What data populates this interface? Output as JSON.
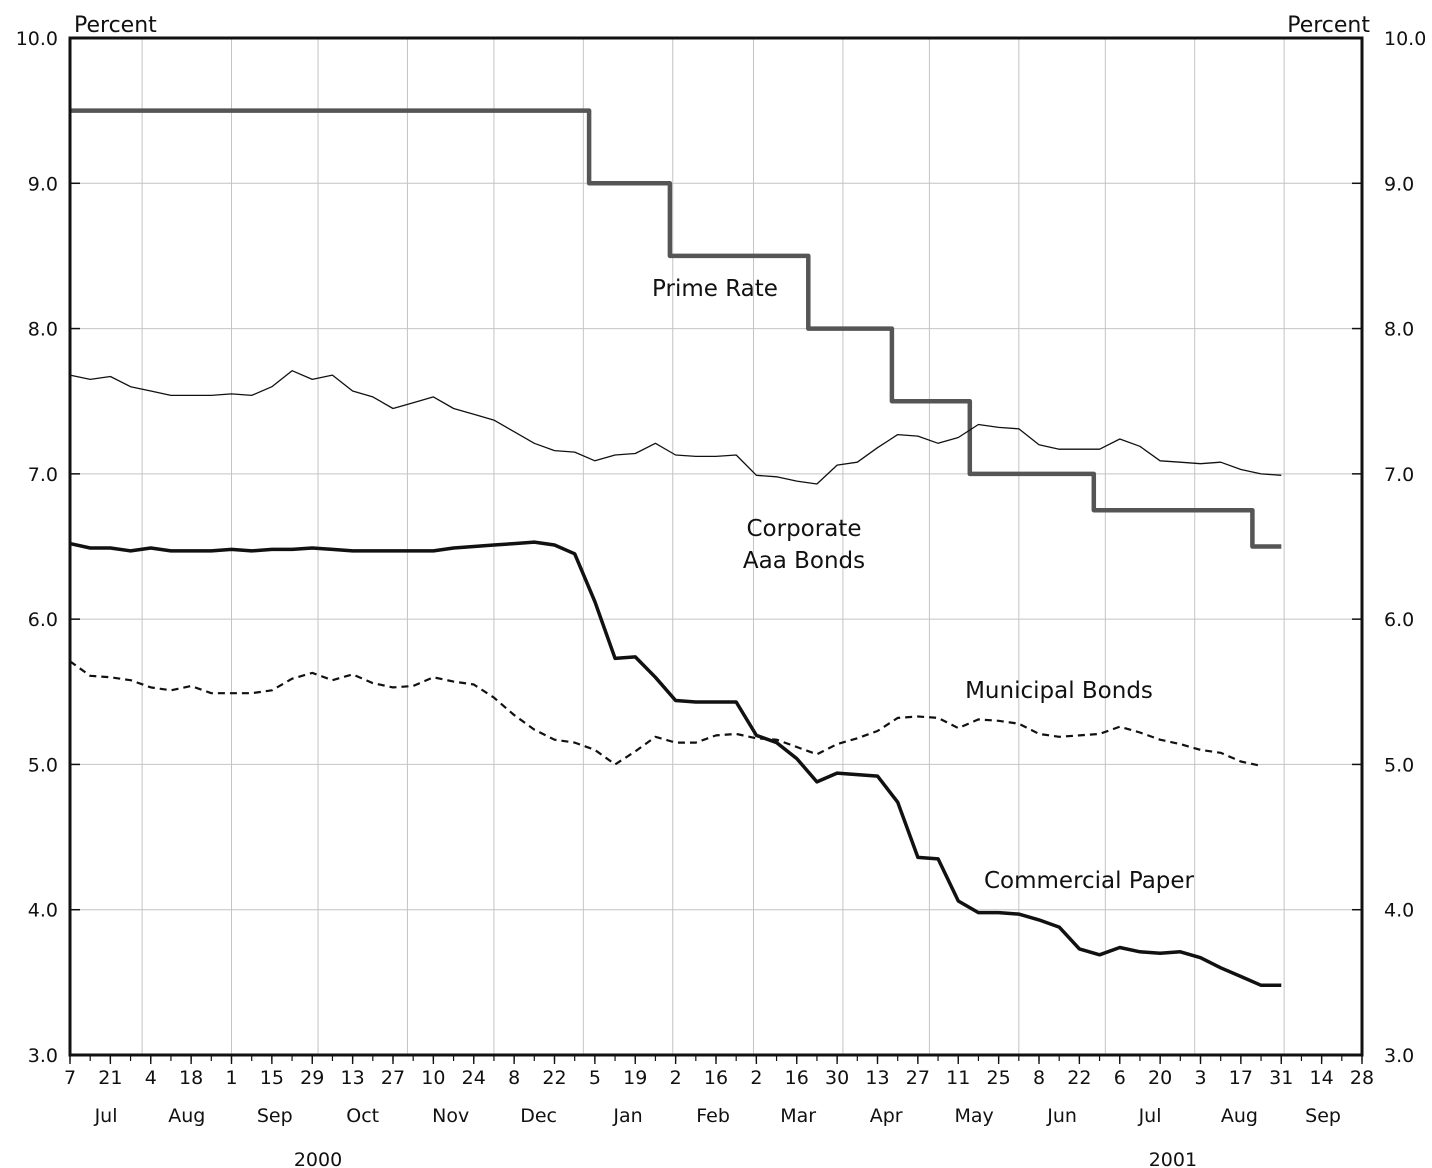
{
  "chart_data": {
    "type": "line",
    "title": "",
    "y_unit_left": "Percent",
    "y_unit_right": "Percent",
    "ylim": [
      3.0,
      10.0
    ],
    "y_ticks": [
      "3.0",
      "4.0",
      "5.0",
      "6.0",
      "7.0",
      "8.0",
      "9.0",
      "10.0"
    ],
    "grid": true,
    "x_range": [
      "2000-07-07",
      "2001-09-28"
    ],
    "x_tick_labels": [
      "7",
      "21",
      "4",
      "18",
      "1",
      "15",
      "29",
      "13",
      "27",
      "10",
      "24",
      "8",
      "22",
      "5",
      "19",
      "2",
      "16",
      "2",
      "16",
      "30",
      "13",
      "27",
      "11",
      "25",
      "8",
      "22",
      "6",
      "20",
      "3",
      "17",
      "31",
      "14",
      "28"
    ],
    "month_labels": [
      "Jul",
      "Aug",
      "Sep",
      "Oct",
      "Nov",
      "Dec",
      "Jan",
      "Feb",
      "Mar",
      "Apr",
      "May",
      "Jun",
      "Jul",
      "Aug",
      "Sep"
    ],
    "year_labels": [
      "2000",
      "2001"
    ],
    "series": [
      {
        "name": "Prime Rate",
        "style": "step",
        "color": "#555555",
        "x": [
          "2000-07-07",
          "2001-01-03",
          "2001-01-31",
          "2001-03-20",
          "2001-04-18",
          "2001-05-15",
          "2001-06-27",
          "2001-08-21",
          "2001-08-31"
        ],
        "values": [
          9.5,
          9.0,
          8.5,
          8.0,
          7.5,
          7.0,
          6.75,
          6.5,
          6.5
        ]
      },
      {
        "name": "Corporate Aaa Bonds",
        "style": "thin",
        "color": "#111111",
        "x": [
          "2000-07-07",
          "2000-07-14",
          "2000-07-21",
          "2000-07-28",
          "2000-08-04",
          "2000-08-11",
          "2000-08-18",
          "2000-08-25",
          "2000-09-01",
          "2000-09-08",
          "2000-09-15",
          "2000-09-22",
          "2000-09-29",
          "2000-10-06",
          "2000-10-13",
          "2000-10-20",
          "2000-10-27",
          "2000-11-03",
          "2000-11-10",
          "2000-11-17",
          "2000-11-24",
          "2000-12-01",
          "2000-12-08",
          "2000-12-15",
          "2000-12-22",
          "2000-12-29",
          "2001-01-05",
          "2001-01-12",
          "2001-01-19",
          "2001-01-26",
          "2001-02-02",
          "2001-02-09",
          "2001-02-16",
          "2001-02-23",
          "2001-03-02",
          "2001-03-09",
          "2001-03-16",
          "2001-03-23",
          "2001-03-30",
          "2001-04-06",
          "2001-04-13",
          "2001-04-20",
          "2001-04-27",
          "2001-05-04",
          "2001-05-11",
          "2001-05-18",
          "2001-05-25",
          "2001-06-01",
          "2001-06-08",
          "2001-06-15",
          "2001-06-22",
          "2001-06-29",
          "2001-07-06",
          "2001-07-13",
          "2001-07-20",
          "2001-07-27",
          "2001-08-03",
          "2001-08-10",
          "2001-08-17",
          "2001-08-24",
          "2001-08-31"
        ],
        "values": [
          7.68,
          7.65,
          7.67,
          7.6,
          7.57,
          7.54,
          7.54,
          7.54,
          7.55,
          7.54,
          7.6,
          7.71,
          7.65,
          7.68,
          7.57,
          7.53,
          7.45,
          7.49,
          7.53,
          7.45,
          7.41,
          7.37,
          7.29,
          7.21,
          7.16,
          7.15,
          7.09,
          7.13,
          7.14,
          7.21,
          7.13,
          7.12,
          7.12,
          7.13,
          6.99,
          6.98,
          6.95,
          6.93,
          7.06,
          7.08,
          7.18,
          7.27,
          7.26,
          7.21,
          7.25,
          7.34,
          7.32,
          7.31,
          7.2,
          7.17,
          7.17,
          7.17,
          7.24,
          7.19,
          7.09,
          7.08,
          7.07,
          7.08,
          7.03,
          7.0,
          6.99
        ]
      },
      {
        "name": "Municipal Bonds",
        "style": "dashed",
        "color": "#111111",
        "x": [
          "2000-07-07",
          "2000-07-14",
          "2000-07-21",
          "2000-07-28",
          "2000-08-04",
          "2000-08-11",
          "2000-08-18",
          "2000-08-25",
          "2000-09-01",
          "2000-09-08",
          "2000-09-15",
          "2000-09-22",
          "2000-09-29",
          "2000-10-06",
          "2000-10-13",
          "2000-10-20",
          "2000-10-27",
          "2000-11-03",
          "2000-11-10",
          "2000-11-17",
          "2000-11-24",
          "2000-12-01",
          "2000-12-08",
          "2000-12-15",
          "2000-12-22",
          "2000-12-29",
          "2001-01-05",
          "2001-01-12",
          "2001-01-19",
          "2001-01-26",
          "2001-02-02",
          "2001-02-09",
          "2001-02-16",
          "2001-02-23",
          "2001-03-02",
          "2001-03-09",
          "2001-03-16",
          "2001-03-23",
          "2001-03-30",
          "2001-04-06",
          "2001-04-13",
          "2001-04-20",
          "2001-04-27",
          "2001-05-04",
          "2001-05-11",
          "2001-05-18",
          "2001-05-25",
          "2001-06-01",
          "2001-06-08",
          "2001-06-15",
          "2001-06-22",
          "2001-06-29",
          "2001-07-06",
          "2001-07-13",
          "2001-07-20",
          "2001-07-27",
          "2001-08-03",
          "2001-08-10",
          "2001-08-17",
          "2001-08-24"
        ],
        "values": [
          5.71,
          5.61,
          5.6,
          5.58,
          5.53,
          5.51,
          5.54,
          5.49,
          5.49,
          5.49,
          5.51,
          5.59,
          5.63,
          5.58,
          5.62,
          5.56,
          5.53,
          5.54,
          5.6,
          5.57,
          5.55,
          5.46,
          5.34,
          5.24,
          5.17,
          5.15,
          5.1,
          5.0,
          5.09,
          5.19,
          5.15,
          5.15,
          5.2,
          5.21,
          5.18,
          5.17,
          5.12,
          5.07,
          5.14,
          5.18,
          5.23,
          5.32,
          5.33,
          5.32,
          5.25,
          5.31,
          5.3,
          5.28,
          5.21,
          5.19,
          5.2,
          5.21,
          5.26,
          5.22,
          5.17,
          5.14,
          5.1,
          5.08,
          5.02,
          4.99
        ]
      },
      {
        "name": "Commercial Paper",
        "style": "thick",
        "color": "#111111",
        "x": [
          "2000-07-07",
          "2000-07-14",
          "2000-07-21",
          "2000-07-28",
          "2000-08-04",
          "2000-08-11",
          "2000-08-18",
          "2000-08-25",
          "2000-09-01",
          "2000-09-08",
          "2000-09-15",
          "2000-09-22",
          "2000-09-29",
          "2000-10-06",
          "2000-10-13",
          "2000-10-20",
          "2000-10-27",
          "2000-11-03",
          "2000-11-10",
          "2000-11-17",
          "2000-11-24",
          "2000-12-01",
          "2000-12-08",
          "2000-12-15",
          "2000-12-22",
          "2000-12-29",
          "2001-01-05",
          "2001-01-12",
          "2001-01-19",
          "2001-01-26",
          "2001-02-02",
          "2001-02-09",
          "2001-02-16",
          "2001-02-23",
          "2001-03-02",
          "2001-03-09",
          "2001-03-16",
          "2001-03-23",
          "2001-03-30",
          "2001-04-06",
          "2001-04-13",
          "2001-04-20",
          "2001-04-27",
          "2001-05-04",
          "2001-05-11",
          "2001-05-18",
          "2001-05-25",
          "2001-06-01",
          "2001-06-08",
          "2001-06-15",
          "2001-06-22",
          "2001-06-29",
          "2001-07-06",
          "2001-07-13",
          "2001-07-20",
          "2001-07-27",
          "2001-08-03",
          "2001-08-10",
          "2001-08-17",
          "2001-08-24",
          "2001-08-31"
        ],
        "values": [
          6.52,
          6.49,
          6.49,
          6.47,
          6.49,
          6.47,
          6.47,
          6.47,
          6.48,
          6.47,
          6.48,
          6.48,
          6.49,
          6.48,
          6.47,
          6.47,
          6.47,
          6.47,
          6.47,
          6.49,
          6.5,
          6.51,
          6.52,
          6.53,
          6.51,
          6.45,
          6.12,
          5.73,
          5.74,
          5.6,
          5.44,
          5.43,
          5.43,
          5.43,
          5.2,
          5.15,
          5.04,
          4.88,
          4.94,
          4.93,
          4.92,
          4.74,
          4.36,
          4.35,
          4.06,
          3.98,
          3.98,
          3.97,
          3.93,
          3.88,
          3.73,
          3.69,
          3.74,
          3.71,
          3.7,
          3.71,
          3.67,
          3.6,
          3.54,
          3.48,
          3.48
        ]
      }
    ],
    "series_labels": [
      {
        "series": "Prime Rate",
        "lines": [
          "Prime Rate"
        ]
      },
      {
        "series": "Corporate Aaa Bonds",
        "lines": [
          "Corporate",
          "Aaa Bonds"
        ]
      },
      {
        "series": "Municipal Bonds",
        "lines": [
          "Municipal Bonds"
        ]
      },
      {
        "series": "Commercial Paper",
        "lines": [
          "Commercial Paper"
        ]
      }
    ]
  }
}
